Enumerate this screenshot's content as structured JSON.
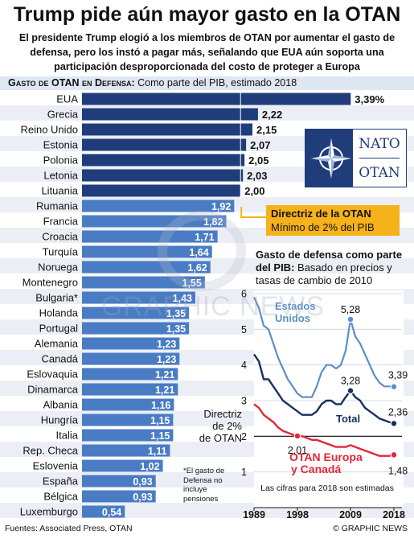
{
  "headline": "Trump pide aún mayor gasto en la OTAN",
  "subhead": "El presidente Trump elogió a los miembros de OTAN por aumentar el gasto de defensa, pero los instó a pagar más, señalando que EUA aún soporta una participación desproporcionada del costo de proteger a Europa",
  "chart_header_caps": "Gasto de OTAN en Defensa:",
  "chart_header_rest": " Como parte del PIB, estimado 2018",
  "nato_logo": {
    "en": "NATO",
    "fr": "OTAN"
  },
  "guideline": {
    "title": "Directriz de la OTAN",
    "text": "Mínimo de 2% del PIB"
  },
  "line_title_bold": "Gasto de defensa como parte del PIB:",
  "line_title_rest": " Basado en precios y tasas de cambio de 2010",
  "general_note": "*El gasto de Defensa no incluye pensiones",
  "footer_source": "Fuentes: Associated Press, OTAN",
  "footer_credit": "© GRAPHIC NEWS",
  "watermark": "GRAPHIC NEWS",
  "colors": {
    "dark_bar": "#1f3d7a",
    "light_bar": "#4a7cc4",
    "us_line": "#5b8fc9",
    "total_line": "#17305e",
    "europe_line": "#e32636",
    "guideline_box": "#f6b21b"
  },
  "chart_data": [
    {
      "type": "bar",
      "title": "Gasto de OTAN en Defensa",
      "categories": [
        "EUA",
        "Grecia",
        "Reino Unido",
        "Estonia",
        "Polonia",
        "Letonia",
        "Lituania",
        "Rumania",
        "Francia",
        "Croacia",
        "Turquía",
        "Noruega",
        "Montenegro",
        "Bulgaria*",
        "Holanda",
        "Portugal",
        "Alemania",
        "Canadá",
        "Eslovaquia",
        "Dinamarca",
        "Albania",
        "Hungría",
        "Italia",
        "Rep. Checa",
        "Eslovenia",
        "España",
        "Bélgica",
        "Luxemburgo"
      ],
      "values": [
        3.39,
        2.22,
        2.15,
        2.07,
        2.05,
        2.03,
        2.0,
        1.92,
        1.82,
        1.71,
        1.64,
        1.62,
        1.55,
        1.43,
        1.35,
        1.35,
        1.23,
        1.23,
        1.21,
        1.21,
        1.16,
        1.15,
        1.15,
        1.11,
        1.02,
        0.93,
        0.93,
        0.54
      ],
      "labels": [
        "3,39%",
        "2,22",
        "2,15",
        "2,07",
        "2,05",
        "2,03",
        "2,00",
        "1,92",
        "1,82",
        "1,71",
        "1,64",
        "1,62",
        "1,55",
        "1,43",
        "1,35",
        "1,35",
        "1,23",
        "1,23",
        "1,21",
        "1,21",
        "1,16",
        "1,15",
        "1,15",
        "1,11",
        "1,02",
        "0,93",
        "0,93",
        "0,54"
      ],
      "threshold": 2.0,
      "xlim": [
        0,
        3.6
      ]
    },
    {
      "type": "line",
      "x_ticks": [
        "1989",
        "1998",
        "2009",
        "2018"
      ],
      "y_ticks": [
        "1",
        "2",
        "3",
        "4",
        "5",
        "6"
      ],
      "ylim": [
        0,
        6
      ],
      "xlim": [
        1989,
        2018
      ],
      "guideline_label": "Directriz de 2% de OTAN",
      "guideline_value": 2,
      "footnote": "Las cifras para 2018 son estimadas",
      "series": [
        {
          "name": "Estados Unidos",
          "x": [
            1989,
            1990,
            1991,
            1992,
            1993,
            1994,
            1995,
            1996,
            1997,
            1998,
            1999,
            2000,
            2001,
            2002,
            2003,
            2004,
            2005,
            2006,
            2007,
            2008,
            2009,
            2010,
            2011,
            2012,
            2013,
            2014,
            2015,
            2016,
            2017,
            2018
          ],
          "y": [
            5.9,
            5.6,
            5.1,
            5.0,
            4.6,
            4.2,
            3.9,
            3.6,
            3.4,
            3.2,
            3.1,
            3.1,
            3.1,
            3.4,
            3.8,
            4.0,
            4.0,
            3.9,
            4.0,
            4.4,
            5.28,
            4.8,
            4.6,
            4.3,
            4.0,
            3.7,
            3.5,
            3.4,
            3.4,
            3.39
          ],
          "highlight": [
            [
              2009,
              "5,28"
            ],
            [
              2018,
              "3,39"
            ]
          ]
        },
        {
          "name": "Total",
          "x": [
            1989,
            1990,
            1991,
            1992,
            1993,
            1994,
            1995,
            1996,
            1997,
            1998,
            1999,
            2000,
            2001,
            2002,
            2003,
            2004,
            2005,
            2006,
            2007,
            2008,
            2009,
            2010,
            2011,
            2012,
            2013,
            2014,
            2015,
            2016,
            2017,
            2018
          ],
          "y": [
            4.3,
            4.1,
            3.6,
            3.6,
            3.4,
            3.2,
            3.0,
            2.9,
            2.8,
            2.7,
            2.6,
            2.6,
            2.6,
            2.7,
            2.9,
            3.0,
            3.0,
            2.9,
            2.9,
            3.1,
            3.28,
            3.1,
            3.0,
            2.8,
            2.7,
            2.6,
            2.5,
            2.45,
            2.4,
            2.36
          ],
          "highlight": [
            [
              2009,
              "3,28"
            ],
            [
              2018,
              "2,36"
            ]
          ]
        },
        {
          "name": "OTAN Europa y Canadá",
          "x": [
            1989,
            1990,
            1991,
            1992,
            1993,
            1994,
            1995,
            1996,
            1997,
            1998,
            1999,
            2000,
            2001,
            2002,
            2003,
            2004,
            2005,
            2006,
            2007,
            2008,
            2009,
            2010,
            2011,
            2012,
            2013,
            2014,
            2015,
            2016,
            2017,
            2018
          ],
          "y": [
            2.9,
            2.8,
            2.6,
            2.5,
            2.4,
            2.25,
            2.15,
            2.1,
            2.05,
            2.01,
            2.0,
            1.95,
            1.9,
            1.9,
            1.85,
            1.8,
            1.75,
            1.7,
            1.7,
            1.7,
            1.75,
            1.7,
            1.65,
            1.6,
            1.55,
            1.5,
            1.45,
            1.45,
            1.45,
            1.48
          ],
          "highlight": [
            [
              1998,
              "2,01"
            ],
            [
              2018,
              "1,48"
            ]
          ]
        }
      ]
    }
  ]
}
